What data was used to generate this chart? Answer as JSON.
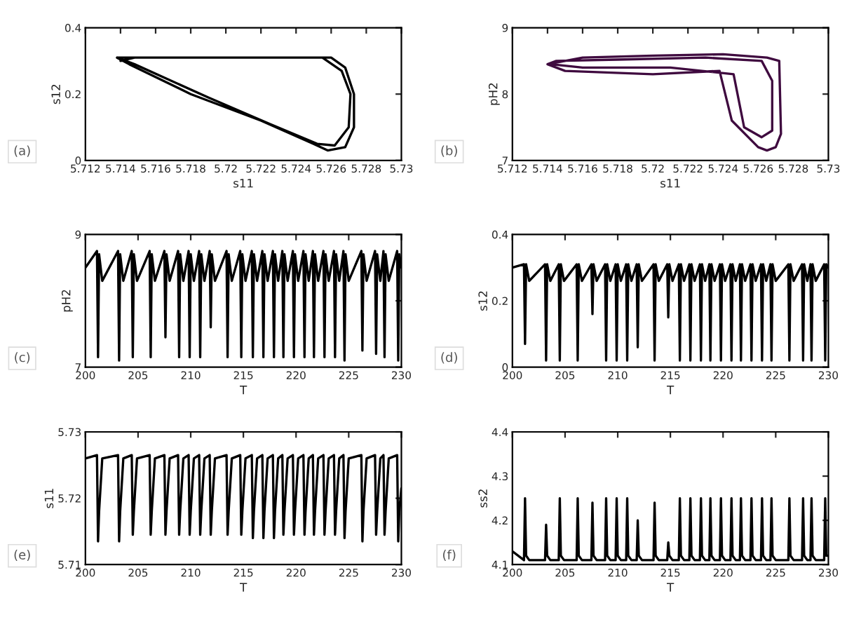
{
  "chart_data": [
    {
      "type": "line",
      "xlabel": "s11",
      "ylabel": "s12",
      "annotations": [
        "(a)"
      ],
      "xlim": [
        5.712,
        5.73
      ],
      "ylim": [
        0,
        0.4
      ],
      "xticks": [
        5.712,
        5.714,
        5.716,
        5.718,
        5.72,
        5.722,
        5.724,
        5.726,
        5.728,
        5.73
      ],
      "yticks": [
        0,
        0.2,
        0.4
      ],
      "series": [
        {
          "color": "#000000",
          "x": [
            5.7138,
            5.7145,
            5.718,
            5.722,
            5.725,
            5.7258,
            5.7268,
            5.7273,
            5.7273,
            5.7268,
            5.726,
            5.72,
            5.715,
            5.7138,
            5.7148,
            5.719,
            5.7225,
            5.7252,
            5.7262,
            5.727,
            5.7271,
            5.7266,
            5.7255,
            5.721,
            5.7148,
            5.714
          ],
          "values": [
            0.31,
            0.29,
            0.2,
            0.12,
            0.05,
            0.03,
            0.04,
            0.1,
            0.2,
            0.28,
            0.31,
            0.31,
            0.31,
            0.31,
            0.29,
            0.19,
            0.11,
            0.05,
            0.045,
            0.1,
            0.2,
            0.27,
            0.31,
            0.31,
            0.31,
            0.3
          ]
        }
      ]
    },
    {
      "type": "line",
      "xlabel": "s11",
      "ylabel": "pH2",
      "annotations": [
        "(b)"
      ],
      "xlim": [
        5.712,
        5.73
      ],
      "ylim": [
        7,
        9
      ],
      "xticks": [
        5.712,
        5.714,
        5.716,
        5.718,
        5.72,
        5.722,
        5.724,
        5.726,
        5.728,
        5.73
      ],
      "yticks": [
        7,
        8,
        9
      ],
      "series": [
        {
          "color": "#3f0a3f",
          "x": [
            5.714,
            5.716,
            5.72,
            5.724,
            5.7265,
            5.7272,
            5.7273,
            5.727,
            5.7265,
            5.726,
            5.7245,
            5.7238,
            5.72,
            5.715,
            5.714,
            5.7145,
            5.718,
            5.723,
            5.7262,
            5.7268,
            5.7268,
            5.7262,
            5.7252,
            5.7246,
            5.721,
            5.716,
            5.7142
          ],
          "values": [
            8.45,
            8.55,
            8.58,
            8.6,
            8.55,
            8.5,
            7.4,
            7.2,
            7.15,
            7.2,
            7.6,
            8.35,
            8.3,
            8.35,
            8.45,
            8.5,
            8.52,
            8.55,
            8.5,
            8.2,
            7.45,
            7.35,
            7.5,
            8.3,
            8.4,
            8.4,
            8.45
          ]
        }
      ]
    },
    {
      "type": "line",
      "xlabel": "T",
      "ylabel": "pH2",
      "annotations": [
        "(c)"
      ],
      "xlim": [
        200,
        230
      ],
      "ylim": [
        7,
        9
      ],
      "xticks": [
        200,
        205,
        210,
        215,
        220,
        225,
        230
      ],
      "yticks": [
        7,
        {
          "value": 8,
          "label": null
        },
        9
      ],
      "x": [
        200,
        201.1,
        201.2,
        201.3,
        201.6,
        203.1,
        203.2,
        203.3,
        203.6,
        204.4,
        204.5,
        204.6,
        204.9,
        206.1,
        206.2,
        206.3,
        206.6,
        207.5,
        207.6,
        207.7,
        208.0,
        208.8,
        208.9,
        209.0,
        209.3,
        209.8,
        209.9,
        210.0,
        210.3,
        210.8,
        210.9,
        211.0,
        211.3,
        211.8,
        211.9,
        212.0,
        212.3,
        213.4,
        213.5,
        213.6,
        213.9,
        214.7,
        214.8,
        214.9,
        215.2,
        215.8,
        215.9,
        216.0,
        216.3,
        216.8,
        216.9,
        217.0,
        217.3,
        217.8,
        217.9,
        218.0,
        218.3,
        218.7,
        218.8,
        218.9,
        219.2,
        219.7,
        219.8,
        219.9,
        220.2,
        220.7,
        220.8,
        220.9,
        221.2,
        221.6,
        221.7,
        221.8,
        222.1,
        222.6,
        222.7,
        222.8,
        223.1,
        223.6,
        223.7,
        223.8,
        224.1,
        224.5,
        224.6,
        224.7,
        225.0,
        226.2,
        226.3,
        226.4,
        226.7,
        227.5,
        227.6,
        227.7,
        228.0,
        228.3,
        228.4,
        228.5,
        228.8,
        229.6,
        229.7,
        229.8,
        230
      ],
      "series": [
        {
          "color": "#000000",
          "values": [
            8.5,
            8.75,
            7.15,
            8.7,
            8.3,
            8.75,
            7.1,
            8.7,
            8.3,
            8.75,
            7.15,
            8.7,
            8.3,
            8.75,
            7.15,
            8.7,
            8.3,
            8.75,
            7.45,
            8.7,
            8.3,
            8.75,
            7.15,
            8.7,
            8.3,
            8.75,
            7.15,
            8.7,
            8.3,
            8.75,
            7.15,
            8.7,
            8.3,
            8.75,
            7.6,
            8.7,
            8.3,
            8.75,
            7.15,
            8.7,
            8.3,
            8.75,
            7.15,
            8.7,
            8.3,
            8.75,
            7.15,
            8.7,
            8.3,
            8.75,
            7.15,
            8.7,
            8.3,
            8.75,
            7.15,
            8.7,
            8.3,
            8.75,
            7.15,
            8.7,
            8.3,
            8.75,
            7.15,
            8.7,
            8.3,
            8.75,
            7.15,
            8.7,
            8.3,
            8.75,
            7.15,
            8.7,
            8.3,
            8.75,
            7.15,
            8.7,
            8.3,
            8.75,
            7.15,
            8.7,
            8.3,
            8.75,
            7.1,
            8.7,
            8.3,
            8.75,
            7.25,
            8.7,
            8.3,
            8.75,
            7.2,
            8.7,
            8.3,
            8.75,
            7.15,
            8.7,
            8.3,
            8.75,
            7.1,
            8.7,
            8.5
          ]
        }
      ]
    },
    {
      "type": "line",
      "xlabel": "T",
      "ylabel": "s12",
      "annotations": [
        "(d)"
      ],
      "xlim": [
        200,
        230
      ],
      "ylim": [
        0,
        0.4
      ],
      "xticks": [
        200,
        205,
        210,
        215,
        220,
        225,
        230
      ],
      "yticks": [
        0,
        0.2,
        0.4
      ],
      "x": [
        200,
        201.1,
        201.2,
        201.3,
        201.6,
        203.1,
        203.2,
        203.3,
        203.6,
        204.4,
        204.5,
        204.6,
        204.9,
        206.1,
        206.2,
        206.3,
        206.6,
        207.5,
        207.6,
        207.7,
        208.0,
        208.8,
        208.9,
        209.0,
        209.3,
        209.8,
        209.9,
        210.0,
        210.3,
        210.8,
        210.9,
        211.0,
        211.3,
        211.8,
        211.9,
        212.0,
        212.3,
        213.4,
        213.5,
        213.6,
        213.9,
        214.7,
        214.8,
        214.9,
        215.2,
        215.8,
        215.9,
        216.0,
        216.3,
        216.8,
        216.9,
        217.0,
        217.3,
        217.8,
        217.9,
        218.0,
        218.3,
        218.7,
        218.8,
        218.9,
        219.2,
        219.7,
        219.8,
        219.9,
        220.2,
        220.7,
        220.8,
        220.9,
        221.2,
        221.6,
        221.7,
        221.8,
        222.1,
        222.6,
        222.7,
        222.8,
        223.1,
        223.6,
        223.7,
        223.8,
        224.1,
        224.5,
        224.6,
        224.7,
        225.0,
        226.2,
        226.3,
        226.4,
        226.7,
        227.5,
        227.6,
        227.7,
        228.0,
        228.3,
        228.4,
        228.5,
        228.8,
        229.6,
        229.7,
        229.8,
        230
      ],
      "series": [
        {
          "color": "#000000",
          "values": [
            0.3,
            0.31,
            0.07,
            0.31,
            0.26,
            0.31,
            0.02,
            0.31,
            0.26,
            0.31,
            0.02,
            0.31,
            0.26,
            0.31,
            0.02,
            0.31,
            0.26,
            0.31,
            0.16,
            0.31,
            0.26,
            0.31,
            0.02,
            0.31,
            0.26,
            0.31,
            0.02,
            0.31,
            0.26,
            0.31,
            0.02,
            0.31,
            0.26,
            0.31,
            0.06,
            0.31,
            0.26,
            0.31,
            0.02,
            0.31,
            0.26,
            0.31,
            0.15,
            0.31,
            0.26,
            0.31,
            0.02,
            0.31,
            0.26,
            0.31,
            0.02,
            0.31,
            0.26,
            0.31,
            0.02,
            0.31,
            0.26,
            0.31,
            0.02,
            0.31,
            0.26,
            0.31,
            0.02,
            0.31,
            0.26,
            0.31,
            0.02,
            0.31,
            0.26,
            0.31,
            0.02,
            0.31,
            0.26,
            0.31,
            0.02,
            0.31,
            0.26,
            0.31,
            0.02,
            0.31,
            0.26,
            0.31,
            0.02,
            0.31,
            0.26,
            0.31,
            0.02,
            0.31,
            0.26,
            0.31,
            0.02,
            0.31,
            0.26,
            0.31,
            0.02,
            0.31,
            0.26,
            0.31,
            0.02,
            0.31,
            0.3
          ]
        }
      ]
    },
    {
      "type": "line",
      "xlabel": "T",
      "ylabel": "s11",
      "annotations": [
        "(e)"
      ],
      "xlim": [
        200,
        230
      ],
      "ylim": [
        5.71,
        5.73
      ],
      "xticks": [
        200,
        205,
        210,
        215,
        220,
        225,
        230
      ],
      "yticks": [
        5.71,
        5.72,
        5.73
      ],
      "x": [
        200,
        201.1,
        201.2,
        201.3,
        201.6,
        203.1,
        203.2,
        203.3,
        203.6,
        204.4,
        204.5,
        204.6,
        204.9,
        206.1,
        206.2,
        206.3,
        206.6,
        207.5,
        207.6,
        207.7,
        208.0,
        208.8,
        208.9,
        209.0,
        209.3,
        209.8,
        209.9,
        210.0,
        210.3,
        210.8,
        210.9,
        211.0,
        211.3,
        211.8,
        211.9,
        212.0,
        212.3,
        213.4,
        213.5,
        213.6,
        213.9,
        214.7,
        214.8,
        214.9,
        215.2,
        215.8,
        215.9,
        216.0,
        216.3,
        216.8,
        216.9,
        217.0,
        217.3,
        217.8,
        217.9,
        218.0,
        218.3,
        218.7,
        218.8,
        218.9,
        219.2,
        219.7,
        219.8,
        219.9,
        220.2,
        220.7,
        220.8,
        220.9,
        221.2,
        221.6,
        221.7,
        221.8,
        222.1,
        222.6,
        222.7,
        222.8,
        223.1,
        223.6,
        223.7,
        223.8,
        224.1,
        224.5,
        224.6,
        224.7,
        225.0,
        226.2,
        226.3,
        226.4,
        226.7,
        227.5,
        227.6,
        227.7,
        228.0,
        228.3,
        228.4,
        228.5,
        228.8,
        229.6,
        229.7,
        229.8,
        230
      ],
      "series": [
        {
          "color": "#000000",
          "values": [
            5.726,
            5.7265,
            5.7135,
            5.718,
            5.726,
            5.7265,
            5.7135,
            5.718,
            5.726,
            5.7265,
            5.7145,
            5.718,
            5.726,
            5.7265,
            5.7145,
            5.718,
            5.726,
            5.7265,
            5.7145,
            5.718,
            5.726,
            5.7265,
            5.7145,
            5.718,
            5.726,
            5.7265,
            5.7145,
            5.718,
            5.726,
            5.7265,
            5.7145,
            5.718,
            5.726,
            5.7265,
            5.7145,
            5.718,
            5.726,
            5.7265,
            5.7145,
            5.718,
            5.726,
            5.7265,
            5.7145,
            5.718,
            5.726,
            5.7265,
            5.714,
            5.718,
            5.726,
            5.7265,
            5.714,
            5.718,
            5.726,
            5.7265,
            5.714,
            5.718,
            5.726,
            5.7265,
            5.7145,
            5.718,
            5.726,
            5.7265,
            5.7145,
            5.718,
            5.726,
            5.7265,
            5.7145,
            5.718,
            5.726,
            5.7265,
            5.7145,
            5.718,
            5.726,
            5.7265,
            5.7145,
            5.718,
            5.726,
            5.7265,
            5.7145,
            5.718,
            5.726,
            5.7265,
            5.714,
            5.718,
            5.726,
            5.7265,
            5.7135,
            5.718,
            5.726,
            5.7265,
            5.7145,
            5.718,
            5.726,
            5.7265,
            5.7145,
            5.718,
            5.726,
            5.7265,
            5.7135,
            5.718,
            5.7215
          ]
        }
      ]
    },
    {
      "type": "line",
      "xlabel": "T",
      "ylabel": "ss2",
      "annotations": [
        "(f)"
      ],
      "xlim": [
        200,
        230
      ],
      "ylim": [
        4.1,
        4.4
      ],
      "xticks": [
        200,
        205,
        210,
        215,
        220,
        225,
        230
      ],
      "yticks": [
        4.1,
        4.2,
        4.3,
        4.4
      ],
      "x": [
        200,
        201.1,
        201.2,
        201.3,
        201.6,
        203.1,
        203.2,
        203.3,
        203.6,
        204.4,
        204.5,
        204.6,
        204.9,
        206.1,
        206.2,
        206.3,
        206.6,
        207.5,
        207.6,
        207.7,
        208.0,
        208.8,
        208.9,
        209.0,
        209.3,
        209.8,
        209.9,
        210.0,
        210.3,
        210.8,
        210.9,
        211.0,
        211.3,
        211.8,
        211.9,
        212.0,
        212.3,
        213.4,
        213.5,
        213.6,
        213.9,
        214.7,
        214.8,
        214.9,
        215.2,
        215.8,
        215.9,
        216.0,
        216.3,
        216.8,
        216.9,
        217.0,
        217.3,
        217.8,
        217.9,
        218.0,
        218.3,
        218.7,
        218.8,
        218.9,
        219.2,
        219.7,
        219.8,
        219.9,
        220.2,
        220.7,
        220.8,
        220.9,
        221.2,
        221.6,
        221.7,
        221.8,
        222.1,
        222.6,
        222.7,
        222.8,
        223.1,
        223.6,
        223.7,
        223.8,
        224.1,
        224.5,
        224.6,
        224.7,
        225.0,
        226.2,
        226.3,
        226.4,
        226.7,
        227.5,
        227.6,
        227.7,
        228.0,
        228.3,
        228.4,
        228.5,
        228.8,
        229.6,
        229.7,
        229.8,
        230
      ],
      "series": [
        {
          "color": "#000000",
          "values": [
            4.13,
            4.11,
            4.25,
            4.12,
            4.11,
            4.11,
            4.19,
            4.12,
            4.11,
            4.11,
            4.25,
            4.12,
            4.11,
            4.11,
            4.25,
            4.12,
            4.11,
            4.11,
            4.24,
            4.12,
            4.11,
            4.11,
            4.25,
            4.12,
            4.11,
            4.11,
            4.25,
            4.12,
            4.11,
            4.11,
            4.25,
            4.12,
            4.11,
            4.11,
            4.2,
            4.12,
            4.11,
            4.11,
            4.24,
            4.12,
            4.11,
            4.11,
            4.15,
            4.12,
            4.11,
            4.11,
            4.25,
            4.12,
            4.11,
            4.11,
            4.25,
            4.12,
            4.11,
            4.11,
            4.25,
            4.12,
            4.11,
            4.11,
            4.25,
            4.12,
            4.11,
            4.11,
            4.25,
            4.12,
            4.11,
            4.11,
            4.25,
            4.12,
            4.11,
            4.11,
            4.25,
            4.12,
            4.11,
            4.11,
            4.25,
            4.12,
            4.11,
            4.11,
            4.25,
            4.12,
            4.11,
            4.11,
            4.25,
            4.12,
            4.11,
            4.11,
            4.25,
            4.12,
            4.11,
            4.11,
            4.25,
            4.12,
            4.11,
            4.11,
            4.25,
            4.12,
            4.11,
            4.11,
            4.25,
            4.12,
            4.12
          ]
        }
      ]
    }
  ]
}
